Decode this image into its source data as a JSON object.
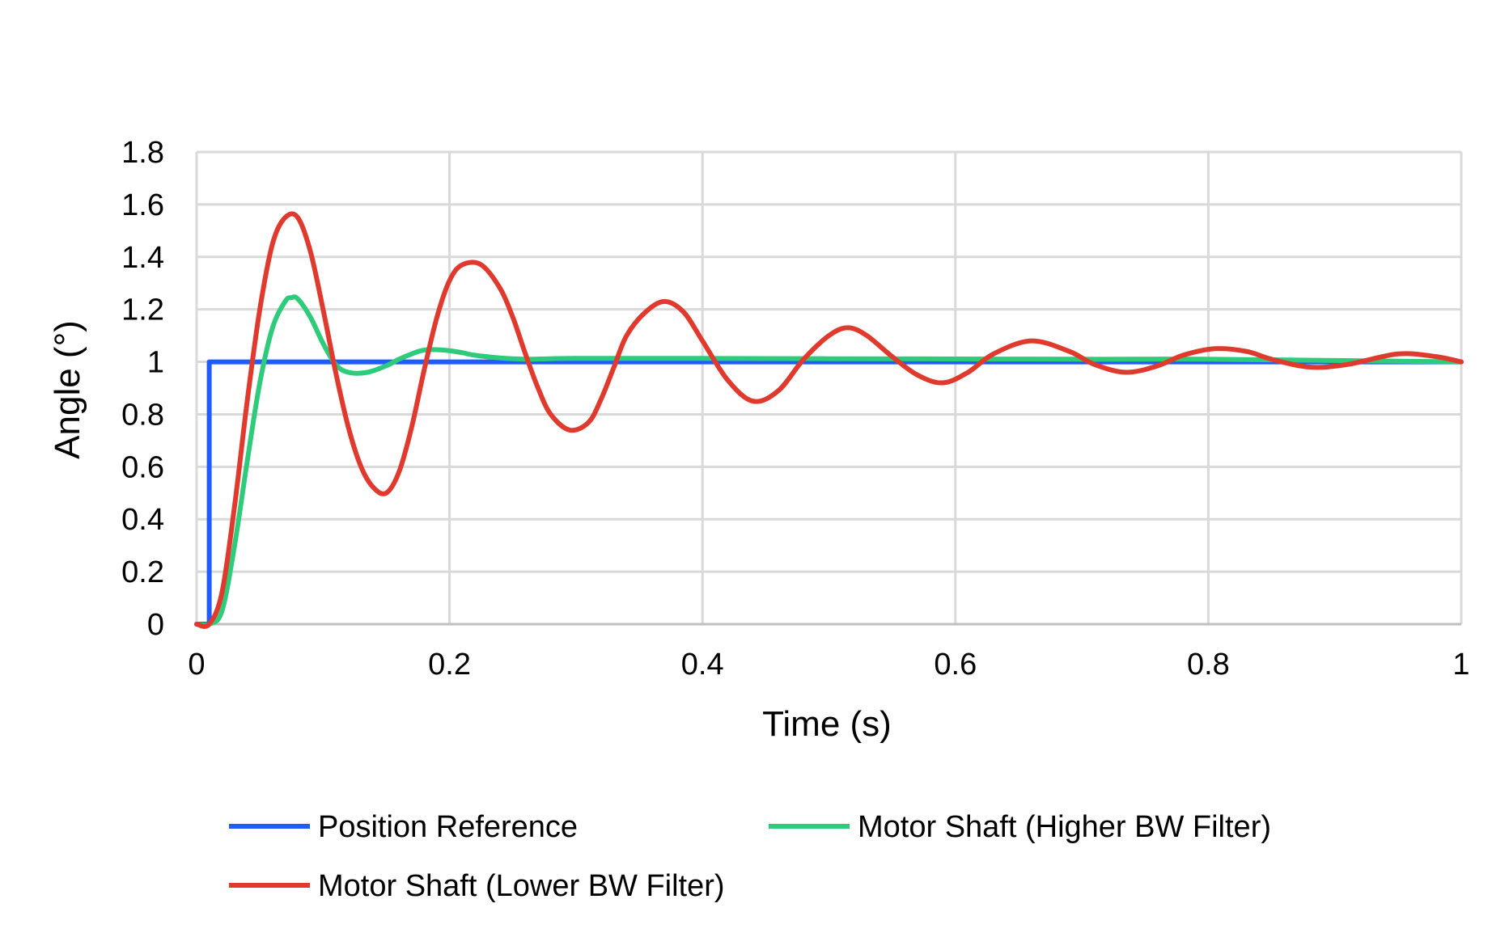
{
  "chart_data": {
    "type": "line",
    "title": "",
    "xlabel": "Time  (s)",
    "ylabel": "Angle  (°)",
    "xlim": [
      0,
      1
    ],
    "ylim": [
      0,
      1.8
    ],
    "x_ticks": [
      0,
      0.2,
      0.4,
      0.6,
      0.8,
      1
    ],
    "x_tick_labels": [
      "0",
      "0.2",
      "0.4",
      "0.6",
      "0.8",
      "1"
    ],
    "y_ticks": [
      0,
      0.2,
      0.4,
      0.6,
      0.8,
      1,
      1.2,
      1.4,
      1.6,
      1.8
    ],
    "y_tick_labels": [
      "0",
      "0.2",
      "0.4",
      "0.6",
      "0.8",
      "1",
      "1.2",
      "1.4",
      "1.6",
      "1.8"
    ],
    "grid": true,
    "legend_position": "bottom",
    "series": [
      {
        "name": "Position Reference",
        "color": "#1f5cff",
        "x": [
          0,
          0.01,
          0.01,
          1
        ],
        "y": [
          0,
          0,
          1,
          1
        ]
      },
      {
        "name": "Motor Shaft (Higher BW Filter)",
        "color": "#2ecc7a",
        "x": [
          0,
          0.01,
          0.02,
          0.03,
          0.04,
          0.05,
          0.06,
          0.07,
          0.075,
          0.08,
          0.09,
          0.1,
          0.11,
          0.12,
          0.135,
          0.15,
          0.16,
          0.17,
          0.18,
          0.195,
          0.21,
          0.22,
          0.24,
          0.26,
          0.28,
          0.3,
          0.4,
          0.5,
          0.6,
          0.7,
          0.8,
          0.9,
          1.0
        ],
        "y": [
          0,
          0,
          0.05,
          0.3,
          0.62,
          0.92,
          1.13,
          1.23,
          1.245,
          1.24,
          1.17,
          1.07,
          0.99,
          0.96,
          0.96,
          0.985,
          1.01,
          1.03,
          1.045,
          1.045,
          1.035,
          1.025,
          1.015,
          1.01,
          1.012,
          1.013,
          1.013,
          1.012,
          1.011,
          1.01,
          1.01,
          1.005,
          1.0
        ]
      },
      {
        "name": "Motor Shaft (Lower BW Filter)",
        "color": "#e03a2e",
        "x": [
          0,
          0.01,
          0.02,
          0.03,
          0.04,
          0.05,
          0.06,
          0.07,
          0.08,
          0.09,
          0.1,
          0.11,
          0.12,
          0.13,
          0.14,
          0.15,
          0.16,
          0.17,
          0.18,
          0.19,
          0.2,
          0.21,
          0.225,
          0.24,
          0.25,
          0.26,
          0.27,
          0.28,
          0.295,
          0.31,
          0.32,
          0.33,
          0.34,
          0.355,
          0.37,
          0.385,
          0.4,
          0.42,
          0.44,
          0.46,
          0.48,
          0.5,
          0.515,
          0.53,
          0.55,
          0.57,
          0.59,
          0.61,
          0.63,
          0.66,
          0.69,
          0.71,
          0.735,
          0.76,
          0.78,
          0.805,
          0.83,
          0.85,
          0.88,
          0.91,
          0.95,
          0.98,
          1.0
        ],
        "y": [
          0,
          0,
          0.12,
          0.45,
          0.85,
          1.2,
          1.45,
          1.55,
          1.55,
          1.42,
          1.2,
          0.96,
          0.75,
          0.6,
          0.52,
          0.5,
          0.58,
          0.75,
          0.97,
          1.17,
          1.31,
          1.37,
          1.37,
          1.28,
          1.17,
          1.03,
          0.9,
          0.8,
          0.74,
          0.77,
          0.86,
          0.98,
          1.1,
          1.19,
          1.23,
          1.19,
          1.08,
          0.93,
          0.85,
          0.89,
          1.01,
          1.1,
          1.13,
          1.1,
          1.02,
          0.95,
          0.92,
          0.96,
          1.03,
          1.08,
          1.04,
          0.99,
          0.96,
          0.985,
          1.025,
          1.05,
          1.04,
          1.01,
          0.98,
          0.99,
          1.03,
          1.02,
          1.0
        ]
      }
    ]
  }
}
